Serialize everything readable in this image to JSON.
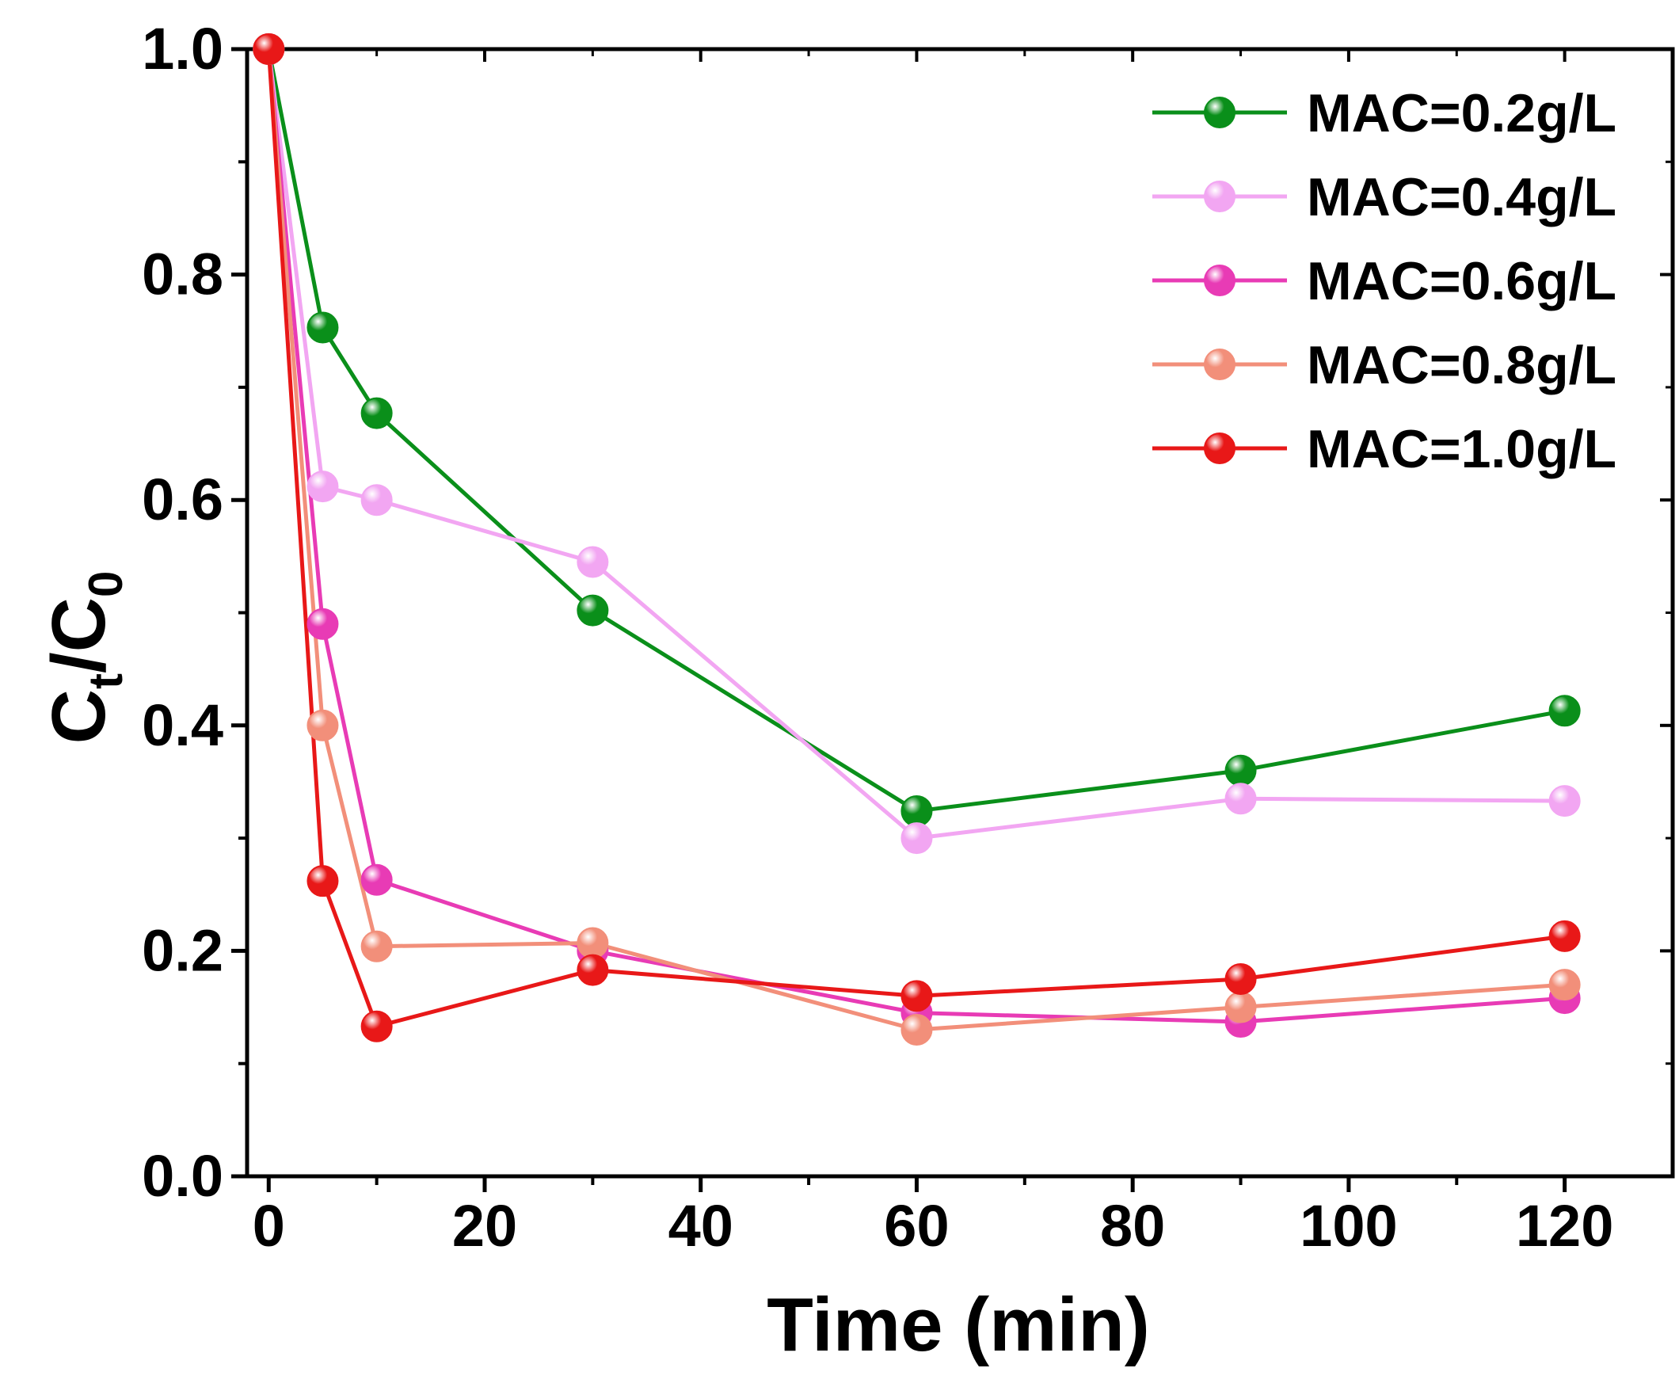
{
  "chart_data": {
    "type": "line",
    "title": "",
    "xlabel": "Time (min)",
    "ylabel_main": "C",
    "ylabel_sub1": "t",
    "ylabel_slash": "/C",
    "ylabel_sub2": "0",
    "xlim": [
      -2,
      130
    ],
    "ylim": [
      0,
      1.0
    ],
    "xticks": [
      0,
      20,
      40,
      60,
      80,
      100,
      120
    ],
    "xtick_labels": [
      "0",
      "20",
      "40",
      "60",
      "80",
      "100",
      "120"
    ],
    "yticks": [
      0.0,
      0.2,
      0.4,
      0.6,
      0.8,
      1.0
    ],
    "ytick_labels": [
      "0.0",
      "0.2",
      "0.4",
      "0.6",
      "0.8",
      "1.0"
    ],
    "x": [
      0,
      5,
      10,
      30,
      60,
      90,
      120
    ],
    "legend_position": "top-right",
    "grid": false,
    "series": [
      {
        "name": "MAC=0.2g/L",
        "color": "#0a8f1a",
        "values": [
          1.0,
          0.753,
          0.677,
          0.502,
          0.324,
          0.36,
          0.413
        ]
      },
      {
        "name": "MAC=0.4g/L",
        "color": "#f2a6f2",
        "values": [
          1.0,
          0.612,
          0.6,
          0.545,
          0.3,
          0.335,
          0.333
        ]
      },
      {
        "name": "MAC=0.6g/L",
        "color": "#e83bb5",
        "values": [
          1.0,
          0.49,
          0.263,
          0.2,
          0.145,
          0.137,
          0.158
        ]
      },
      {
        "name": "MAC=0.8g/L",
        "color": "#f28f7a",
        "values": [
          1.0,
          0.4,
          0.204,
          0.207,
          0.13,
          0.15,
          0.17
        ]
      },
      {
        "name": "MAC=1.0g/L",
        "color": "#e81818",
        "values": [
          1.0,
          0.262,
          0.133,
          0.183,
          0.16,
          0.175,
          0.213
        ]
      }
    ]
  }
}
